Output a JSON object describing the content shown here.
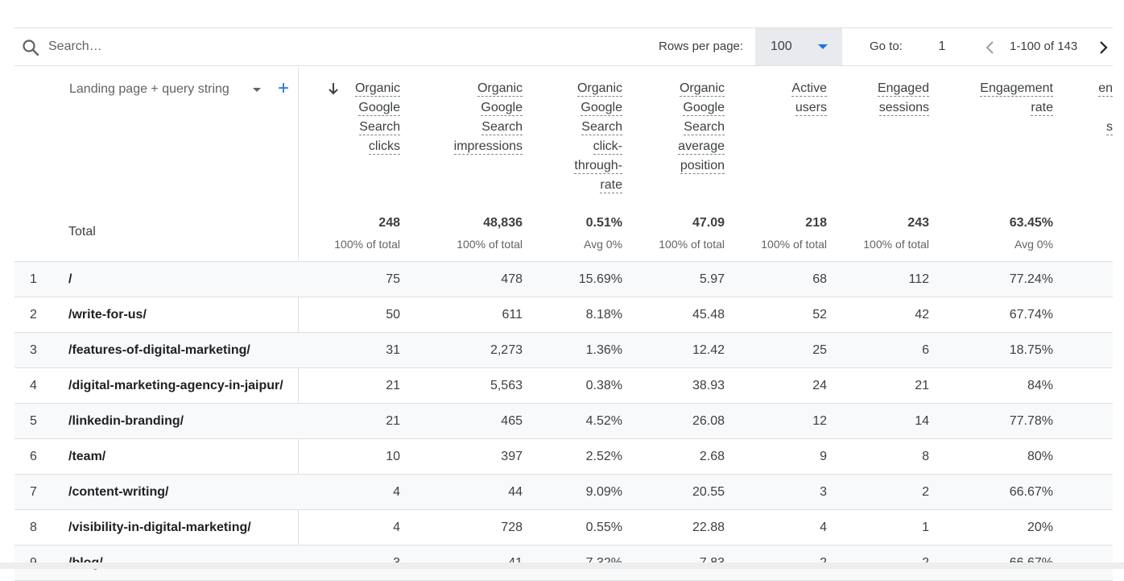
{
  "toolbar": {
    "search_placeholder": "Search…",
    "rows_per_page_label": "Rows per page:",
    "rows_per_page_value": "100",
    "goto_label": "Go to:",
    "goto_value": "1",
    "page_range": "1-100 of 143"
  },
  "table": {
    "dimension_header": "Landing page + query string",
    "columns": [
      {
        "lines": [
          "Organic",
          "Google",
          "Search",
          "clicks"
        ]
      },
      {
        "lines": [
          "Organic",
          "Google",
          "Search",
          "impressions"
        ]
      },
      {
        "lines": [
          "Organic",
          "Google",
          "Search",
          "click-",
          "through-",
          "rate"
        ]
      },
      {
        "lines": [
          "Organic",
          "Google",
          "Search",
          "average",
          "position"
        ]
      },
      {
        "lines": [
          "Active",
          "users"
        ]
      },
      {
        "lines": [
          "Engaged",
          "sessions"
        ]
      },
      {
        "lines": [
          "Engagement",
          "rate"
        ]
      },
      {
        "lines": [
          "en",
          "",
          "s"
        ]
      }
    ],
    "total_label": "Total",
    "totals": [
      {
        "value": "248",
        "sub": "100% of total"
      },
      {
        "value": "48,836",
        "sub": "100% of total"
      },
      {
        "value": "0.51%",
        "sub": "Avg 0%"
      },
      {
        "value": "47.09",
        "sub": "100% of total"
      },
      {
        "value": "218",
        "sub": "100% of total"
      },
      {
        "value": "243",
        "sub": "100% of total"
      },
      {
        "value": "63.45%",
        "sub": "Avg 0%"
      }
    ],
    "rows": [
      {
        "index": "1",
        "page": "/",
        "values": [
          "75",
          "478",
          "15.69%",
          "5.97",
          "68",
          "112",
          "77.24%"
        ]
      },
      {
        "index": "2",
        "page": "/write-for-us/",
        "values": [
          "50",
          "611",
          "8.18%",
          "45.48",
          "52",
          "42",
          "67.74%"
        ]
      },
      {
        "index": "3",
        "page": "/features-of-digital-marketing/",
        "values": [
          "31",
          "2,273",
          "1.36%",
          "12.42",
          "25",
          "6",
          "18.75%"
        ]
      },
      {
        "index": "4",
        "page": "/digital-marketing-agency-in-jaipur/",
        "values": [
          "21",
          "5,563",
          "0.38%",
          "38.93",
          "24",
          "21",
          "84%"
        ]
      },
      {
        "index": "5",
        "page": "/linkedin-branding/",
        "values": [
          "21",
          "465",
          "4.52%",
          "26.08",
          "12",
          "14",
          "77.78%"
        ]
      },
      {
        "index": "6",
        "page": "/team/",
        "values": [
          "10",
          "397",
          "2.52%",
          "2.68",
          "9",
          "8",
          "80%"
        ]
      },
      {
        "index": "7",
        "page": "/content-writing/",
        "values": [
          "4",
          "44",
          "9.09%",
          "20.55",
          "3",
          "2",
          "66.67%"
        ]
      },
      {
        "index": "8",
        "page": "/visibility-in-digital-marketing/",
        "values": [
          "4",
          "728",
          "0.55%",
          "22.88",
          "4",
          "1",
          "20%"
        ]
      },
      {
        "index": "9",
        "page": "/blog/",
        "values": [
          "3",
          "41",
          "7.32%",
          "7.83",
          "2",
          "2",
          "66.67%"
        ]
      }
    ]
  },
  "colors": {
    "accent": "#1a73e8",
    "row_shade": "#f8f9fa",
    "border": "#e0e0e0",
    "select_bg": "#e8eaed"
  },
  "icons": {
    "search": "search-icon",
    "dropdown": "chevron-down-icon",
    "add": "plus-icon",
    "sort": "arrow-down-icon",
    "prev": "chevron-left-icon",
    "next": "chevron-right-icon"
  }
}
